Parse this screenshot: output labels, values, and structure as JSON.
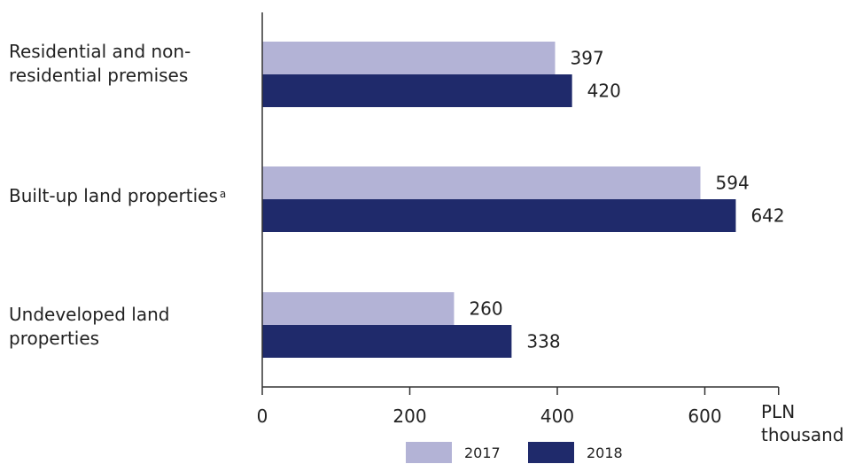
{
  "chart_data": {
    "type": "bar",
    "orientation": "horizontal",
    "categories": [
      "Residential and non-residential premises",
      "Built-up land properties",
      "Undeveloped land properties"
    ],
    "category_footnotes": [
      "",
      "a",
      ""
    ],
    "series": [
      {
        "name": "2017",
        "values": [
          397,
          594,
          260
        ],
        "color": "#b3b3d6"
      },
      {
        "name": "2018",
        "values": [
          420,
          642,
          338
        ],
        "color": "#1f2a6b"
      }
    ],
    "xticks": [
      0,
      200,
      400,
      600
    ],
    "xlim": [
      0,
      700
    ],
    "unit_line1": "PLN",
    "unit_line2": "thousand",
    "legend_position": "bottom"
  }
}
